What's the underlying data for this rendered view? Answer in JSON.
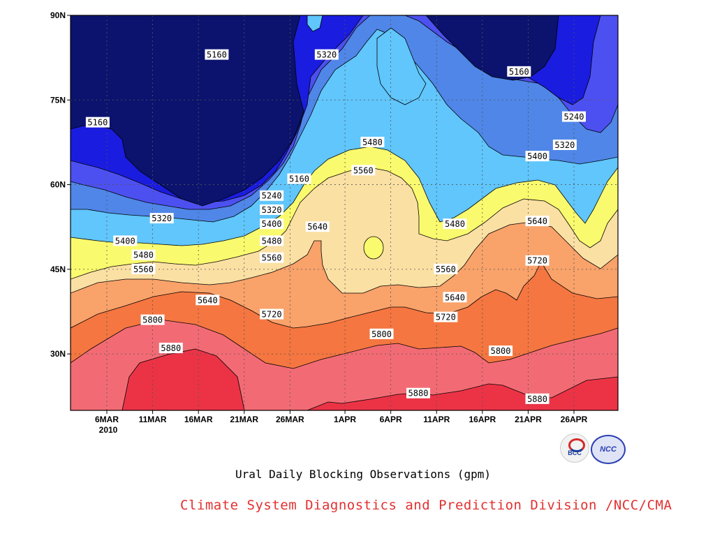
{
  "chart_data": {
    "type": "heatmap",
    "xlabel": "",
    "ylabel": "",
    "x_ticks": [
      "6MAR",
      "11MAR",
      "16MAR",
      "21MAR",
      "26MAR",
      "1APR",
      "6APR",
      "11APR",
      "16APR",
      "21APR",
      "26APR"
    ],
    "x_year": "2010",
    "y_ticks": [
      "90N",
      "75N",
      "60N",
      "45N",
      "30N"
    ],
    "ylim": [
      20,
      90
    ],
    "levels": [
      5160,
      5240,
      5320,
      5400,
      5480,
      5560,
      5640,
      5720,
      5800,
      5880
    ],
    "fill_colors": [
      "#0b136e",
      "#1a1ce0",
      "#4d50f0",
      "#4f86e8",
      "#60c6fc",
      "#fafa6e",
      "#fbe0a3",
      "#f9a26a",
      "#f57640",
      "#f26b74",
      "#ec3346"
    ],
    "contour_labels": [
      {
        "value": 5160,
        "date": "18MAR",
        "lat": 83
      },
      {
        "value": 5160,
        "date": "5MAR",
        "lat": 71
      },
      {
        "value": 5160,
        "date": "27MAR",
        "lat": 61
      },
      {
        "value": 5160,
        "date": "20APR",
        "lat": 80
      },
      {
        "value": 5320,
        "date": "30MAR",
        "lat": 83
      },
      {
        "value": 5240,
        "date": "26APR",
        "lat": 72
      },
      {
        "value": 5480,
        "date": "4APR",
        "lat": 67.5
      },
      {
        "value": 5320,
        "date": "25APR",
        "lat": 67
      },
      {
        "value": 5400,
        "date": "22APR",
        "lat": 65
      },
      {
        "value": 5560,
        "date": "3APR",
        "lat": 62.5
      },
      {
        "value": 5240,
        "date": "24MAR",
        "lat": 58
      },
      {
        "value": 5320,
        "date": "24MAR",
        "lat": 55.5
      },
      {
        "value": 5400,
        "date": "24MAR",
        "lat": 53
      },
      {
        "value": 5320,
        "date": "12MAR",
        "lat": 54
      },
      {
        "value": 5480,
        "date": "24MAR",
        "lat": 50
      },
      {
        "value": 5640,
        "date": "29MAR",
        "lat": 52.5
      },
      {
        "value": 5400,
        "date": "8MAR",
        "lat": 50
      },
      {
        "value": 5480,
        "date": "10MAR",
        "lat": 47.5
      },
      {
        "value": 5480,
        "date": "13APR",
        "lat": 53
      },
      {
        "value": 5560,
        "date": "24MAR",
        "lat": 47
      },
      {
        "value": 5560,
        "date": "10MAR",
        "lat": 45
      },
      {
        "value": 5560,
        "date": "12APR",
        "lat": 45
      },
      {
        "value": 5640,
        "date": "22APR",
        "lat": 53.5
      },
      {
        "value": 5640,
        "date": "17MAR",
        "lat": 39.5
      },
      {
        "value": 5640,
        "date": "13APR",
        "lat": 40
      },
      {
        "value": 5720,
        "date": "24MAR",
        "lat": 37
      },
      {
        "value": 5720,
        "date": "22APR",
        "lat": 46.5
      },
      {
        "value": 5720,
        "date": "12APR",
        "lat": 36.5
      },
      {
        "value": 5800,
        "date": "11MAR",
        "lat": 36
      },
      {
        "value": 5800,
        "date": "5APR",
        "lat": 33.5
      },
      {
        "value": 5800,
        "date": "18APR",
        "lat": 30.5
      },
      {
        "value": 5880,
        "date": "13MAR",
        "lat": 31
      },
      {
        "value": 5880,
        "date": "9APR",
        "lat": 23
      },
      {
        "value": 5880,
        "date": "22APR",
        "lat": 22
      }
    ]
  },
  "caption": "Ural Daily Blocking Observations (gpm)",
  "credit": "Climate System Diagnostics and Prediction Division /NCC/CMA",
  "logos": {
    "left": "BCC",
    "right": "NCC"
  }
}
